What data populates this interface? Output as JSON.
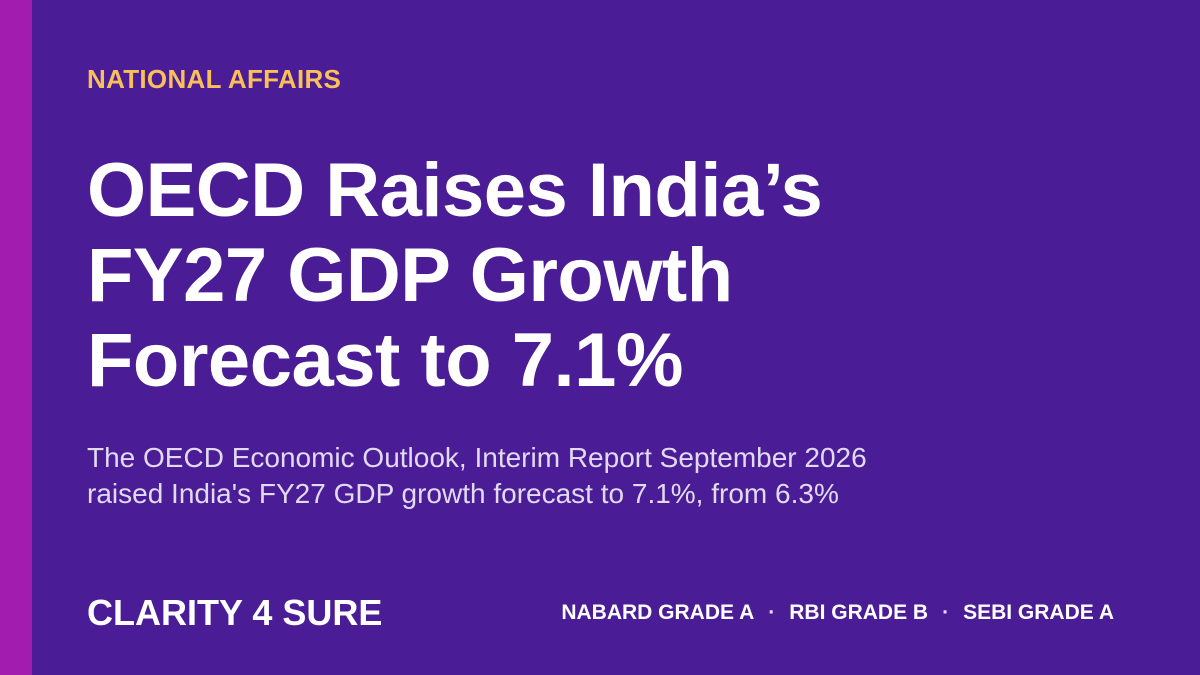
{
  "category": "NATIONAL AFFAIRS",
  "headline": {
    "line1": "OECD Raises India’s",
    "line2": "FY27 GDP Growth",
    "line3": "Forecast to 7.1%"
  },
  "summary": {
    "line1": "The OECD Economic Outlook, Interim Report September 2026",
    "line2": "raised India's FY27 GDP growth forecast to 7.1%, from 6.3%"
  },
  "brand": "CLARITY 4 SURE",
  "exams": {
    "separator": "·",
    "items": [
      "NABARD GRADE A",
      "RBI GRADE B",
      "SEBI GRADE A"
    ]
  },
  "colors": {
    "background": "#4a1d96",
    "side_bar": "#a21caf",
    "category_text": "#fbbf5a",
    "headline_text": "#ffffff",
    "summary_text": "#e2d9f3"
  }
}
